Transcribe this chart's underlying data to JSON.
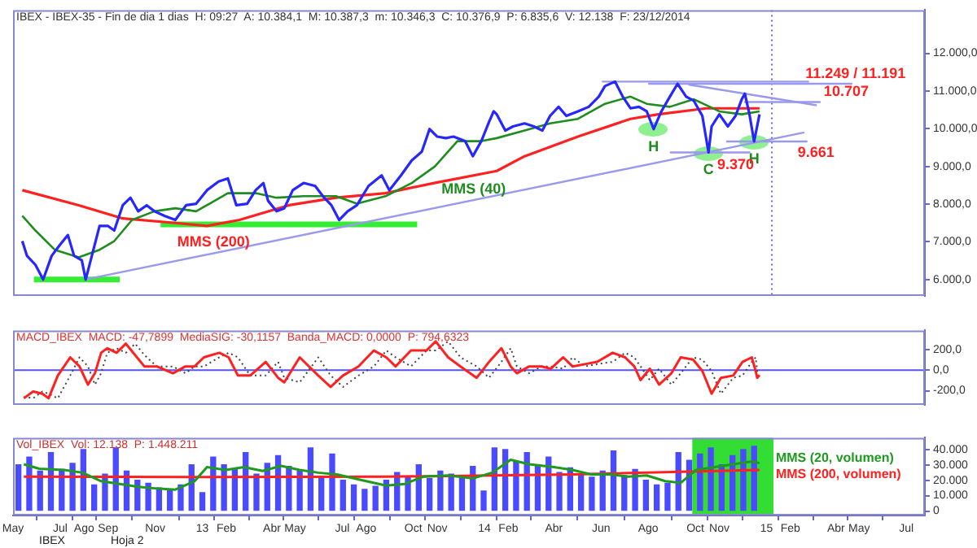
{
  "chart_data": [
    {
      "type": "line",
      "title": "IBEX - IBEX-35 - Fin de dia 1 dias  H: 09:27  A: 10.384,1  M: 10.387,3  m: 10.346,3  C: 10.376,9  P: 6.835,6  V: 12.138  F: 23/12/2014",
      "tick_labels": "y",
      "xlim": [
        "2012-05-01",
        "2015-07-25"
      ],
      "ylim": [
        5565,
        13145
      ],
      "yticks": [
        {
          "value": 6000,
          "label": "6.000,0"
        },
        {
          "value": 7000,
          "label": "7.000,0"
        },
        {
          "value": 8000,
          "label": "8.000,0"
        },
        {
          "value": 9000,
          "label": "9.000,0"
        },
        {
          "value": 10000,
          "label": "10.000,0"
        },
        {
          "value": 11000,
          "label": "11.000,0"
        },
        {
          "value": 12000,
          "label": "12.000,0"
        }
      ],
      "series": [
        {
          "color": "#2626ff",
          "x": [
            "2012-05-13",
            "2012-05-19",
            "2012-05-30",
            "2012-06-09",
            "2012-06-20",
            "2012-06-30",
            "2012-07-11",
            "2012-07-19",
            "2012-07-29",
            "2012-08-03",
            "2012-08-11",
            "2012-08-21",
            "2012-09-01",
            "2012-09-09",
            "2012-09-20",
            "2012-09-30",
            "2012-10-10",
            "2012-10-21",
            "2012-10-31",
            "2012-11-13",
            "2012-11-27",
            "2012-12-11",
            "2012-12-24",
            "2013-01-07",
            "2013-01-22",
            "2013-02-03",
            "2013-02-14",
            "2013-02-28",
            "2013-03-11",
            "2013-03-21",
            "2013-03-27",
            "2013-04-07",
            "2013-04-17",
            "2013-04-28",
            "2013-05-12",
            "2013-05-27",
            "2013-06-06",
            "2013-06-17",
            "2013-06-27",
            "2013-07-08",
            "2013-07-20",
            "2013-08-04",
            "2013-08-21",
            "2013-08-31",
            "2013-09-15",
            "2013-09-29",
            "2013-10-12",
            "2013-10-22",
            "2013-11-01",
            "2013-11-12",
            "2013-11-22",
            "2013-12-07",
            "2013-12-17",
            "2013-12-28",
            "2014-01-07",
            "2014-01-13",
            "2014-01-17",
            "2014-01-28",
            "2014-02-07",
            "2014-02-22",
            "2014-03-06",
            "2014-03-17",
            "2014-03-27",
            "2014-04-07",
            "2014-04-17",
            "2014-05-02",
            "2014-05-16",
            "2014-05-29",
            "2014-06-06",
            "2014-06-19",
            "2014-06-29",
            "2014-07-09",
            "2014-07-20",
            "2014-07-30",
            "2014-08-08",
            "2014-08-18",
            "2014-08-29",
            "2014-09-08",
            "2014-09-19",
            "2014-09-29",
            "2014-10-10",
            "2014-10-18",
            "2014-10-22",
            "2014-11-01",
            "2014-11-12",
            "2014-11-22",
            "2014-11-30",
            "2014-12-04",
            "2014-12-10",
            "2014-12-16",
            "2014-12-23"
          ],
          "values": [
            7020,
            6630,
            6390,
            6000,
            6630,
            6900,
            7180,
            6630,
            6510,
            6000,
            6630,
            7420,
            7420,
            7300,
            7970,
            8170,
            7810,
            7970,
            7810,
            7690,
            7580,
            7970,
            8010,
            8370,
            8600,
            8680,
            7970,
            8010,
            8370,
            8560,
            8090,
            7810,
            7890,
            8370,
            8560,
            8480,
            8210,
            7970,
            7580,
            7810,
            7970,
            8480,
            8760,
            8370,
            8760,
            9160,
            9390,
            9990,
            9790,
            9750,
            9790,
            9670,
            9270,
            9670,
            10180,
            10460,
            10380,
            9950,
            10060,
            10140,
            10060,
            9950,
            10340,
            10580,
            10340,
            10460,
            10580,
            10850,
            11130,
            11249,
            10850,
            10540,
            10580,
            10460,
            9990,
            10460,
            10850,
            11191,
            10850,
            10740,
            10340,
            9370,
            10060,
            10380,
            10060,
            10340,
            10780,
            10930,
            10380,
            9661,
            10380
          ]
        },
        {
          "color": "#1e8c1e",
          "x": [
            "2012-05-13",
            "2012-05-30",
            "2012-06-24",
            "2012-07-25",
            "2012-08-21",
            "2012-09-09",
            "2012-10-02",
            "2012-10-31",
            "2012-11-27",
            "2012-12-24",
            "2013-02-03",
            "2013-03-11",
            "2013-04-07",
            "2013-05-12",
            "2013-06-23",
            "2013-07-20",
            "2013-08-26",
            "2013-09-29",
            "2013-10-29",
            "2013-11-27",
            "2013-12-28",
            "2014-01-17",
            "2014-02-22",
            "2014-03-27",
            "2014-05-02",
            "2014-06-06",
            "2014-07-09",
            "2014-07-30",
            "2014-08-29",
            "2014-09-29",
            "2014-11-01",
            "2014-11-30",
            "2014-12-23"
          ],
          "values": [
            7690,
            7300,
            6790,
            6590,
            6790,
            7020,
            7580,
            7810,
            7890,
            7810,
            8290,
            8290,
            8170,
            8210,
            8210,
            8010,
            8210,
            8560,
            9000,
            9670,
            9670,
            9750,
            9950,
            10140,
            10260,
            10660,
            10850,
            10660,
            10580,
            10780,
            10460,
            10380,
            10460
          ]
        },
        {
          "color": "#ff2020",
          "x": [
            "2012-05-13",
            "2012-07-25",
            "2012-09-20",
            "2012-11-27",
            "2013-01-07",
            "2013-02-18",
            "2013-04-23",
            "2013-06-23",
            "2013-08-26",
            "2013-10-28",
            "2014-01-17",
            "2014-02-22",
            "2014-05-02",
            "2014-07-09",
            "2014-08-14",
            "2014-10-15",
            "2014-12-23"
          ],
          "values": [
            8370,
            7970,
            7620,
            7500,
            7420,
            7580,
            7970,
            8170,
            8290,
            8560,
            8880,
            9270,
            9790,
            10260,
            10380,
            10540,
            10540
          ]
        },
        {
          "color": "#9999ee",
          "x": [
            "2014-06-02",
            "2015-02-25"
          ],
          "values": [
            11249,
            11249
          ]
        },
        {
          "color": "#9999ee",
          "x": [
            "2014-08-01",
            "2015-04-22"
          ],
          "values": [
            11191,
            11191
          ]
        },
        {
          "color": "#9999ee",
          "x": [
            "2014-12-03",
            "2015-03-12"
          ],
          "values": [
            10707,
            10707
          ]
        },
        {
          "color": "#9999ee",
          "x": [
            "2014-11-10",
            "2015-02-23"
          ],
          "values": [
            9661,
            9661
          ]
        },
        {
          "color": "#9999ee",
          "x": [
            "2014-08-29",
            "2014-12-11"
          ],
          "values": [
            9370,
            9370
          ]
        },
        {
          "color": "#9999ee",
          "x": [
            "2014-09-22",
            "2015-03-07"
          ],
          "values": [
            11170,
            10620
          ]
        },
        {
          "color": "#9999ee",
          "x": [
            "2012-08-02",
            "2015-02-19"
          ],
          "values": [
            6000,
            9900
          ]
        },
        {
          "color": "#33ee33",
          "x": [
            "2012-05-28",
            "2012-09-16"
          ],
          "values": [
            6000,
            6000
          ]
        },
        {
          "color": "#33ee33",
          "x": [
            "2012-11-08",
            "2013-10-06"
          ],
          "values": [
            7460,
            7460
          ]
        }
      ],
      "ref_lines": [
        {
          "axis": "x",
          "value": "2015-01-08",
          "color": "#6666dd",
          "line_style": "dotted"
        }
      ],
      "annotations": [
        {
          "text": "H",
          "x": "2014-08-08",
          "y": 9990
        },
        {
          "text": "C",
          "x": "2014-10-18",
          "y": 9370
        },
        {
          "text": "H",
          "x": "2014-12-16",
          "y": 9661
        },
        {
          "text": "11.249 / 11.191",
          "x": "2015-04-22",
          "y": 11191
        },
        {
          "text": "10.707",
          "x": "2015-03-12",
          "y": 10707
        },
        {
          "text": "9.661",
          "x": "2015-02-23",
          "y": 9661
        },
        {
          "text": "9.370",
          "x": "2014-12-11",
          "y": 9370
        },
        {
          "text": "MMS (40)",
          "x": "2013-10-29",
          "y": 9000
        },
        {
          "text": "MMS (200)",
          "x": "2013-01-07",
          "y": 7420
        }
      ]
    },
    {
      "type": "line",
      "title": "MACD_IBEX  MACD: -47,7899  MediaSIG: -30,1157  Banda_MACD: 0,0000  P: 794,6323",
      "tick_labels": "y",
      "xlim": [
        "2012-05-01",
        "2015-07-25"
      ],
      "ylim": [
        -337,
        383
      ],
      "yticks": [
        {
          "value": -200,
          "label": "-200,0"
        },
        {
          "value": 0,
          "label": "0,0"
        },
        {
          "value": 200,
          "label": "200,0"
        }
      ],
      "series": [
        {
          "color": "#ff2020",
          "x": [
            "2012-05-15",
            "2012-05-27",
            "2012-06-08",
            "2012-06-16",
            "2012-06-28",
            "2012-07-14",
            "2012-07-26",
            "2012-08-06",
            "2012-08-15",
            "2012-08-23",
            "2012-08-31",
            "2012-09-12",
            "2012-09-24",
            "2012-10-06",
            "2012-10-18",
            "2012-11-03",
            "2012-11-24",
            "2012-12-10",
            "2012-12-22",
            "2013-01-03",
            "2013-01-23",
            "2013-02-04",
            "2013-02-16",
            "2013-03-04",
            "2013-03-24",
            "2013-04-09",
            "2013-04-17",
            "2013-05-07",
            "2013-05-31",
            "2013-06-16",
            "2013-07-02",
            "2013-07-22",
            "2013-08-11",
            "2013-08-27",
            "2013-09-08",
            "2013-09-28",
            "2013-10-18",
            "2013-10-30",
            "2013-11-15",
            "2013-12-01",
            "2013-12-22",
            "2014-01-07",
            "2014-01-23",
            "2014-02-04",
            "2014-02-12",
            "2014-02-28",
            "2014-03-16",
            "2014-03-28",
            "2014-04-13",
            "2014-04-25",
            "2014-05-11",
            "2014-05-27",
            "2014-06-16",
            "2014-07-02",
            "2014-07-14",
            "2014-07-22",
            "2014-08-03",
            "2014-08-15",
            "2014-08-31",
            "2014-09-12",
            "2014-09-28",
            "2014-10-10",
            "2014-10-22",
            "2014-11-03",
            "2014-11-19",
            "2014-12-01",
            "2014-12-13",
            "2014-12-18",
            "2014-12-20",
            "2014-12-23"
          ],
          "values": [
            -273,
            -207,
            -229,
            -273,
            -53,
            123,
            35,
            -141,
            -31,
            167,
            211,
            167,
            255,
            145,
            35,
            35,
            -31,
            35,
            35,
            123,
            167,
            123,
            -53,
            -53,
            79,
            -75,
            -119,
            123,
            -53,
            -163,
            -53,
            35,
            189,
            123,
            35,
            189,
            189,
            277,
            123,
            35,
            -75,
            79,
            211,
            35,
            -31,
            35,
            35,
            13,
            123,
            35,
            57,
            79,
            167,
            123,
            35,
            -97,
            13,
            -141,
            -31,
            123,
            101,
            -9,
            -229,
            -75,
            -53,
            79,
            123,
            -9,
            -75,
            -48
          ]
        },
        {
          "color": "#444444",
          "line_style": "dotted",
          "x": [
            "2012-05-15",
            "2012-05-27",
            "2012-06-08",
            "2012-06-16",
            "2012-06-28",
            "2012-07-14",
            "2012-07-26",
            "2012-08-06",
            "2012-08-15",
            "2012-08-23",
            "2012-08-31",
            "2012-09-12",
            "2012-09-24",
            "2012-10-06",
            "2012-10-18",
            "2012-11-03",
            "2012-11-24",
            "2012-12-10",
            "2012-12-22",
            "2013-01-03",
            "2013-01-23",
            "2013-02-04",
            "2013-02-16",
            "2013-03-04",
            "2013-03-24",
            "2013-04-09",
            "2013-04-17",
            "2013-05-07",
            "2013-05-31",
            "2013-06-16",
            "2013-07-02",
            "2013-07-22",
            "2013-08-11",
            "2013-08-27",
            "2013-09-08",
            "2013-09-28",
            "2013-10-18",
            "2013-10-30",
            "2013-11-15",
            "2013-12-01",
            "2013-12-22",
            "2014-01-07",
            "2014-01-23",
            "2014-02-04",
            "2014-02-12",
            "2014-02-28",
            "2014-03-16",
            "2014-03-28",
            "2014-04-13",
            "2014-04-25",
            "2014-05-11",
            "2014-05-27",
            "2014-06-16",
            "2014-07-02",
            "2014-07-14",
            "2014-07-22",
            "2014-08-03",
            "2014-08-15",
            "2014-08-31",
            "2014-09-12",
            "2014-09-28",
            "2014-10-10",
            "2014-10-22",
            "2014-11-03",
            "2014-11-19",
            "2014-12-01",
            "2014-12-13",
            "2014-12-18",
            "2014-12-20",
            "2014-12-23"
          ],
          "values": [
            -260,
            -273,
            -207,
            -229,
            -273,
            -53,
            123,
            35,
            -141,
            -31,
            167,
            211,
            167,
            255,
            145,
            35,
            35,
            -31,
            35,
            35,
            123,
            167,
            123,
            -53,
            -53,
            79,
            -75,
            -119,
            123,
            -53,
            -163,
            -53,
            35,
            189,
            123,
            35,
            189,
            189,
            277,
            123,
            35,
            -75,
            79,
            211,
            35,
            -31,
            35,
            35,
            13,
            123,
            35,
            57,
            79,
            167,
            123,
            35,
            -97,
            13,
            -141,
            -31,
            123,
            101,
            -9,
            -229,
            -75,
            -53,
            79,
            123,
            -9,
            -30
          ]
        }
      ],
      "ref_lines": [
        {
          "axis": "y",
          "value": 0,
          "color": "#5555ee"
        }
      ]
    },
    {
      "type": "bar",
      "title": "Vol_IBEX  Vol: 12.138  P: 1.448.211",
      "xlim": [
        "2012-05-01",
        "2015-07-25"
      ],
      "ylim": [
        -2900,
        47600
      ],
      "xticks": [
        {
          "value": "2012-05",
          "label": "May"
        },
        {
          "value": "2012-07",
          "label": "Jul"
        },
        {
          "value": "2012-08",
          "label": "Ago"
        },
        {
          "value": "2012-09",
          "label": "Sep"
        },
        {
          "value": "2012-11",
          "label": "Nov"
        },
        {
          "value": "2013-01",
          "label": "13"
        },
        {
          "value": "2013-02",
          "label": "Feb"
        },
        {
          "value": "2013-04",
          "label": "Abr"
        },
        {
          "value": "2013-05",
          "label": "May"
        },
        {
          "value": "2013-07",
          "label": "Jul"
        },
        {
          "value": "2013-08",
          "label": "Ago"
        },
        {
          "value": "2013-10",
          "label": "Oct"
        },
        {
          "value": "2013-11",
          "label": "Nov"
        },
        {
          "value": "2014-01",
          "label": "14"
        },
        {
          "value": "2014-02",
          "label": "Feb"
        },
        {
          "value": "2014-04",
          "label": "Abr"
        },
        {
          "value": "2014-06",
          "label": "Jun"
        },
        {
          "value": "2014-08",
          "label": "Ago"
        },
        {
          "value": "2014-10",
          "label": "Oct"
        },
        {
          "value": "2014-11",
          "label": "Nov"
        },
        {
          "value": "2015-01",
          "label": "15"
        },
        {
          "value": "2015-02",
          "label": "Feb"
        },
        {
          "value": "2015-04",
          "label": "Abr"
        },
        {
          "value": "2015-05",
          "label": "May"
        },
        {
          "value": "2015-07",
          "label": "Jul"
        }
      ],
      "yticks": [
        0,
        {
          "value": 10000,
          "label": "10.000"
        },
        {
          "value": 20000,
          "label": "20.000"
        },
        {
          "value": 30000,
          "label": "30.000"
        },
        {
          "value": 40000,
          "label": "40.000"
        }
      ],
      "series": [
        {
          "color": "#4a4aff",
          "x": [
            "2012-05-08",
            "2012-05-22",
            "2012-06-05",
            "2012-06-19",
            "2012-07-03",
            "2012-07-17",
            "2012-07-31",
            "2012-08-14",
            "2012-08-28",
            "2012-09-11",
            "2012-09-25",
            "2012-10-09",
            "2012-10-23",
            "2012-11-06",
            "2012-11-20",
            "2012-12-04",
            "2012-12-18",
            "2013-01-01",
            "2013-01-15",
            "2013-01-29",
            "2013-02-12",
            "2013-02-26",
            "2013-03-12",
            "2013-03-26",
            "2013-04-09",
            "2013-04-23",
            "2013-05-07",
            "2013-05-21",
            "2013-06-04",
            "2013-06-18",
            "2013-07-02",
            "2013-07-16",
            "2013-07-30",
            "2013-08-13",
            "2013-08-27",
            "2013-09-10",
            "2013-09-24",
            "2013-10-08",
            "2013-10-22",
            "2013-11-05",
            "2013-11-19",
            "2013-12-03",
            "2013-12-17",
            "2013-12-31",
            "2014-01-14",
            "2014-01-28",
            "2014-02-11",
            "2014-02-25",
            "2014-03-11",
            "2014-03-25",
            "2014-04-08",
            "2014-04-22",
            "2014-05-06",
            "2014-05-20",
            "2014-06-03",
            "2014-06-17",
            "2014-07-01",
            "2014-07-15",
            "2014-07-29",
            "2014-08-12",
            "2014-08-26",
            "2014-09-09",
            "2014-09-23",
            "2014-10-07",
            "2014-10-21",
            "2014-11-04",
            "2014-11-18",
            "2014-12-02",
            "2014-12-16"
          ],
          "values": [
            30000,
            35000,
            26000,
            38000,
            27000,
            31000,
            40000,
            17000,
            24000,
            41000,
            26000,
            20000,
            18000,
            15000,
            14000,
            17000,
            30000,
            12000,
            35000,
            30000,
            27000,
            38000,
            24000,
            31000,
            36000,
            29000,
            26000,
            41000,
            22000,
            37000,
            20000,
            17000,
            14000,
            16000,
            20000,
            25000,
            22000,
            30000,
            21000,
            26000,
            24000,
            22000,
            29000,
            13000,
            41000,
            40000,
            32000,
            38000,
            30000,
            35000,
            25000,
            28000,
            24000,
            22000,
            26000,
            39000,
            23000,
            27000,
            20000,
            17000,
            18000,
            38000,
            33000,
            37000,
            41000,
            30000,
            36000,
            40000,
            42000
          ]
        },
        {
          "type": "line",
          "color": "#1e9a1e",
          "x": [
            "2012-05-15",
            "2012-06-04",
            "2012-07-06",
            "2012-07-30",
            "2012-08-23",
            "2012-09-16",
            "2012-10-10",
            "2012-11-03",
            "2012-11-27",
            "2012-12-22",
            "2013-01-07",
            "2013-01-31",
            "2013-02-24",
            "2013-03-20",
            "2013-04-13",
            "2013-05-07",
            "2013-05-31",
            "2013-06-24",
            "2013-07-26",
            "2013-08-27",
            "2013-09-20",
            "2013-10-14",
            "2013-11-15",
            "2013-12-17",
            "2014-01-11",
            "2014-02-04",
            "2014-02-28",
            "2014-04-01",
            "2014-04-25",
            "2014-05-19",
            "2014-06-12",
            "2014-07-06",
            "2014-07-30",
            "2014-08-23",
            "2014-09-12",
            "2014-10-02",
            "2014-10-26",
            "2014-11-19",
            "2014-12-13",
            "2014-12-23"
          ],
          "values": [
            30400,
            27450,
            26700,
            24900,
            19400,
            17600,
            15700,
            14600,
            13900,
            19400,
            28550,
            26700,
            28550,
            26000,
            29300,
            26700,
            24900,
            23800,
            20100,
            16500,
            17600,
            22300,
            23100,
            21200,
            24900,
            33300,
            30400,
            28550,
            26700,
            23800,
            23800,
            22300,
            23100,
            19400,
            18300,
            26700,
            28550,
            30400,
            32200,
            31100
          ]
        },
        {
          "type": "line",
          "color": "#ff2020",
          "x": [
            "2012-05-15",
            "2012-12-30",
            "2013-08-27",
            "2014-04-25",
            "2014-12-23"
          ],
          "values": [
            22300,
            22000,
            22300,
            23800,
            26700
          ]
        }
      ],
      "bands": [
        {
          "axis": "x",
          "from": "2014-09-27",
          "to": "2015-01-10",
          "color": "#33dd33"
        }
      ],
      "annotations": [
        {
          "text": "MMS (20, volumen)",
          "x": "2014-12-23",
          "y": 31100
        },
        {
          "text": "MMS (200, volumen)",
          "x": "2014-12-23",
          "y": 26700
        },
        "IBEX",
        "Hoja 2"
      ]
    }
  ]
}
